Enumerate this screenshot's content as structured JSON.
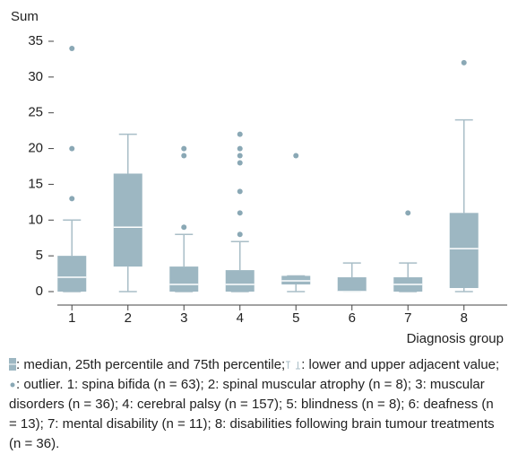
{
  "chart_data": {
    "type": "box",
    "ylabel": "Sum",
    "xlabel": "Diagnosis group",
    "categories": [
      "1",
      "2",
      "3",
      "4",
      "5",
      "6",
      "7",
      "8"
    ],
    "boxes": [
      {
        "whislo": 0,
        "q1": 0,
        "med": 2,
        "q3": 5,
        "whishi": 10,
        "fliers": [
          13,
          20,
          34
        ]
      },
      {
        "whislo": 0,
        "q1": 3.5,
        "med": 9,
        "q3": 16.5,
        "whishi": 22,
        "fliers": []
      },
      {
        "whislo": 0,
        "q1": 0,
        "med": 1,
        "q3": 3.5,
        "whishi": 8,
        "fliers": [
          9,
          19,
          20
        ]
      },
      {
        "whislo": 0,
        "q1": 0,
        "med": 1,
        "q3": 3,
        "whishi": 7,
        "fliers": [
          8,
          11,
          14,
          18,
          19,
          20,
          22
        ]
      },
      {
        "whislo": 0,
        "q1": 1,
        "med": 1.5,
        "q3": 2.2,
        "whishi": 2.2,
        "fliers": [
          19
        ]
      },
      {
        "whislo": 0,
        "q1": 0,
        "med": 0,
        "q3": 2,
        "whishi": 4,
        "fliers": []
      },
      {
        "whislo": 0,
        "q1": 0,
        "med": 1,
        "q3": 2,
        "whishi": 4,
        "fliers": [
          11
        ]
      },
      {
        "whislo": 0,
        "q1": 0.5,
        "med": 6,
        "q3": 11,
        "whishi": 24,
        "fliers": [
          32
        ]
      }
    ],
    "box_color": "#9db7c2",
    "whisker_color": "#a9bec7",
    "median_color": "#ffffff",
    "flier_color": "#8aa8b5",
    "ylim": [
      0,
      35
    ],
    "yticks": [
      0,
      5,
      10,
      15,
      20,
      25,
      30,
      35
    ],
    "grid": false,
    "caption_parts": [
      ": median, 25th percentile and 75th percentile;",
      ": lower and upper adjacent value;",
      ": outlier. 1: spina bifida (n = 63); 2: spinal muscular atrophy (n = 8); 3: muscular disorders (n = 36); 4: cerebral palsy (n = 157); 5: blindness (n = 8); 6: deafness (n = 13); 7: mental disability (n = 11); 8: disabilities following brain tumour treatments (n = 36)."
    ]
  }
}
